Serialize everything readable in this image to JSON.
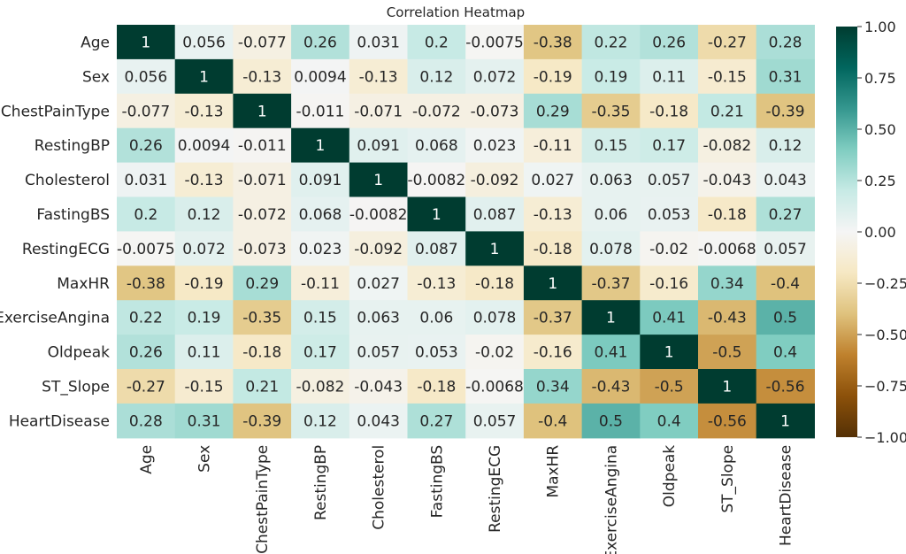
{
  "chart_data": {
    "type": "heatmap",
    "title": "Correlation Heatmap",
    "xlabel": "",
    "ylabel": "",
    "row_labels": [
      "Age",
      "Sex",
      "ChestPainType",
      "RestingBP",
      "Cholesterol",
      "FastingBS",
      "RestingECG",
      "MaxHR",
      "ExerciseAngina",
      "Oldpeak",
      "ST_Slope",
      "HeartDisease"
    ],
    "col_labels": [
      "Age",
      "Sex",
      "ChestPainType",
      "RestingBP",
      "Cholesterol",
      "FastingBS",
      "RestingECG",
      "MaxHR",
      "ExerciseAngina",
      "Oldpeak",
      "ST_Slope",
      "HeartDisease"
    ],
    "values": [
      [
        "1",
        "0.056",
        "-0.077",
        "0.26",
        "0.031",
        "0.2",
        "-0.0075",
        "-0.38",
        "0.22",
        "0.26",
        "-0.27",
        "0.28"
      ],
      [
        "0.056",
        "1",
        "-0.13",
        "0.0094",
        "-0.13",
        "0.12",
        "0.072",
        "-0.19",
        "0.19",
        "0.11",
        "-0.15",
        "0.31"
      ],
      [
        "-0.077",
        "-0.13",
        "1",
        "-0.011",
        "-0.071",
        "-0.072",
        "-0.073",
        "0.29",
        "-0.35",
        "-0.18",
        "0.21",
        "-0.39"
      ],
      [
        "0.26",
        "0.0094",
        "-0.011",
        "1",
        "0.091",
        "0.068",
        "0.023",
        "-0.11",
        "0.15",
        "0.17",
        "-0.082",
        "0.12"
      ],
      [
        "0.031",
        "-0.13",
        "-0.071",
        "0.091",
        "1",
        "-0.0082",
        "-0.092",
        "0.027",
        "0.063",
        "0.057",
        "-0.043",
        "0.043"
      ],
      [
        "0.2",
        "0.12",
        "-0.072",
        "0.068",
        "-0.0082",
        "1",
        "0.087",
        "-0.13",
        "0.06",
        "0.053",
        "-0.18",
        "0.27"
      ],
      [
        "-0.0075",
        "0.072",
        "-0.073",
        "0.023",
        "-0.092",
        "0.087",
        "1",
        "-0.18",
        "0.078",
        "-0.02",
        "-0.0068",
        "0.057"
      ],
      [
        "-0.38",
        "-0.19",
        "0.29",
        "-0.11",
        "0.027",
        "-0.13",
        "-0.18",
        "1",
        "-0.37",
        "-0.16",
        "0.34",
        "-0.4"
      ],
      [
        "0.22",
        "0.19",
        "-0.35",
        "0.15",
        "0.063",
        "0.06",
        "0.078",
        "-0.37",
        "1",
        "0.41",
        "-0.43",
        "0.5"
      ],
      [
        "0.26",
        "0.11",
        "-0.18",
        "0.17",
        "0.057",
        "0.053",
        "-0.02",
        "-0.16",
        "0.41",
        "1",
        "-0.5",
        "0.4"
      ],
      [
        "-0.27",
        "-0.15",
        "0.21",
        "-0.082",
        "-0.043",
        "-0.18",
        "-0.0068",
        "0.34",
        "-0.43",
        "-0.5",
        "1",
        "-0.56"
      ],
      [
        "0.28",
        "0.31",
        "-0.39",
        "0.12",
        "0.043",
        "0.27",
        "0.057",
        "-0.4",
        "0.5",
        "0.4",
        "-0.56",
        "1"
      ]
    ],
    "vmin": -1.0,
    "vmax": 1.0,
    "colormap": "BrBG",
    "colorbar_ticks": [
      "1.00",
      "0.75",
      "0.50",
      "0.25",
      "0.00",
      "−0.25",
      "−0.50",
      "−0.75",
      "−1.00"
    ],
    "colorbar_tick_values": [
      1.0,
      0.75,
      0.5,
      0.25,
      0.0,
      -0.25,
      -0.5,
      -0.75,
      -1.0
    ],
    "colormap_stops": [
      "#543005",
      "#8c510a",
      "#bf812d",
      "#dfc27d",
      "#f6e8c3",
      "#f5f5f5",
      "#c7eae5",
      "#80cdc1",
      "#35978f",
      "#01665e",
      "#003c30"
    ]
  }
}
